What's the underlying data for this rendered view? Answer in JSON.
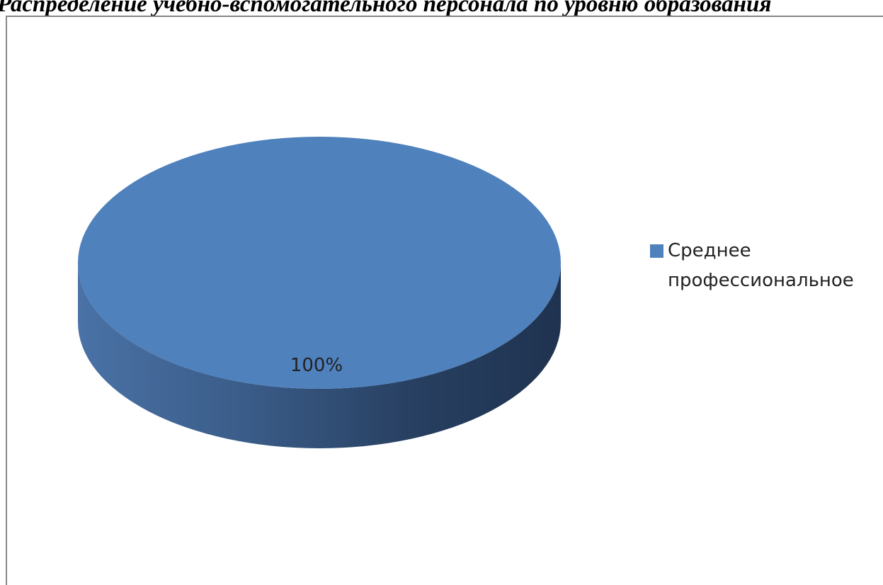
{
  "chart_data": {
    "type": "pie",
    "title": "Распределение учебно-вспомогательного персонала по уровню образования",
    "slices": [
      {
        "name": "Среднее профессиональное",
        "value": 100,
        "label": "100%",
        "color": "#4f81bd"
      }
    ],
    "legend": "right",
    "style": "3d"
  }
}
